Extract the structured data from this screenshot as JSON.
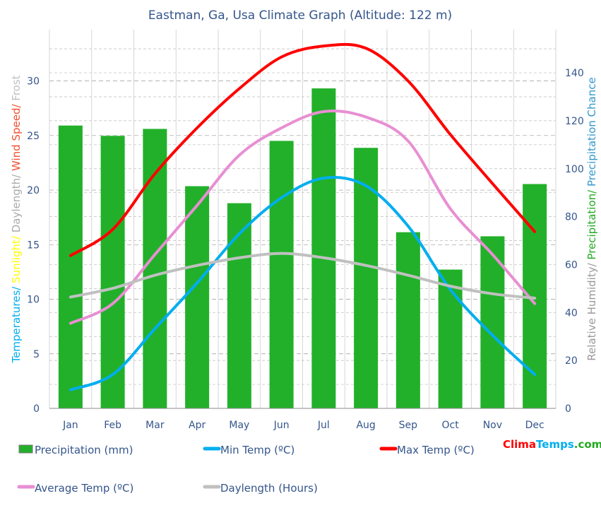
{
  "chart_data": {
    "type": "bar",
    "title": "Eastman, Ga, Usa Climate Graph (Altitude: 122 m)",
    "categories": [
      "Jan",
      "Feb",
      "Mar",
      "Apr",
      "May",
      "Jun",
      "Jul",
      "Aug",
      "Sep",
      "Oct",
      "Nov",
      "Dec"
    ],
    "left_axis": {
      "label_parts": [
        {
          "text": "Temperatures/ ",
          "colors": [
            "#00aeef",
            "#e88fd3",
            "#ff0000"
          ]
        },
        {
          "text": "Sunlight/ ",
          "color": "#ffff00"
        },
        {
          "text": "Daylength/ ",
          "color": "#aaaaaa"
        },
        {
          "text": "Wind Speed/ ",
          "color": "#f05030"
        },
        {
          "text": "Frost",
          "color": "#c0c0c0"
        }
      ],
      "ylim": [
        0,
        34.7
      ],
      "ticks": [
        0,
        5,
        10,
        15,
        20,
        25,
        30
      ]
    },
    "right_axis": {
      "label_parts": [
        {
          "text": "Relative Humidity/ ",
          "color": "#999999"
        },
        {
          "text": "Precipitation/ ",
          "color": "#22aa22"
        },
        {
          "text": "Precipitation Chance",
          "color": "#3399cc"
        }
      ],
      "ylim": [
        0,
        158
      ],
      "ticks": [
        0,
        20,
        40,
        60,
        80,
        100,
        120,
        140
      ]
    },
    "grid": true,
    "series": [
      {
        "name": "Precipitation (mm)",
        "type": "bar",
        "axis": "right",
        "color": "#22b02a",
        "values": [
          118,
          113.7,
          116.6,
          92.7,
          85.6,
          111.6,
          133.5,
          108.7,
          73.5,
          57.9,
          71.8,
          93.6
        ]
      },
      {
        "name": "Min Temp (ºC)",
        "type": "line",
        "axis": "left",
        "color": "#00aeef",
        "values": [
          1.7,
          3.1,
          7.3,
          11.5,
          16,
          19.3,
          21.1,
          20.4,
          16.7,
          10.9,
          6.7,
          3.1
        ]
      },
      {
        "name": "Max Temp (ºC)",
        "type": "line",
        "axis": "left",
        "color": "#ff0000",
        "values": [
          14,
          16.4,
          21.5,
          25.7,
          29.3,
          32.2,
          33.2,
          33,
          30,
          25.1,
          20.6,
          16.2
        ]
      },
      {
        "name": "Average Temp (ºC)",
        "type": "line",
        "axis": "left",
        "color": "#e88fd3",
        "values": [
          7.8,
          9.6,
          14.1,
          18.6,
          23.2,
          25.7,
          27.2,
          26.7,
          24.5,
          18.3,
          14.1,
          9.6
        ]
      },
      {
        "name": "Daylength (Hours)",
        "type": "line",
        "axis": "left",
        "color": "#c0c0c0",
        "values": [
          10.2,
          11,
          12.2,
          13.1,
          13.8,
          14.2,
          13.8,
          13.1,
          12.2,
          11.2,
          10.5,
          10.1
        ]
      }
    ],
    "legend_placement": "bottom",
    "logo": {
      "parts": [
        {
          "text": "Clima",
          "color": "#ff0000"
        },
        {
          "text": "Temps",
          "color": "#00aeef"
        },
        {
          "text": ".com",
          "color": "#22aa22"
        }
      ]
    }
  }
}
